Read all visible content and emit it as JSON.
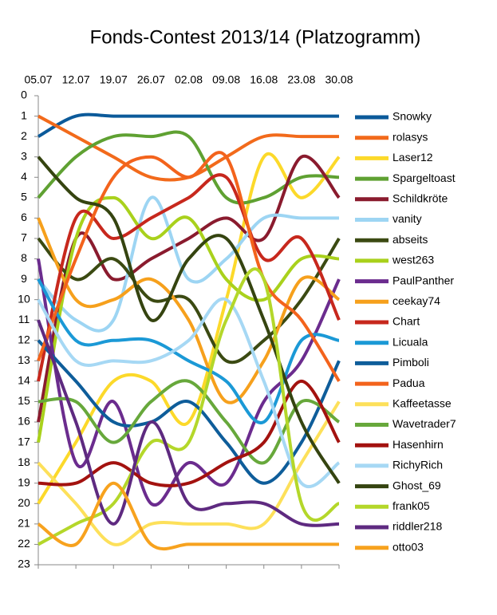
{
  "chart_data": {
    "type": "line",
    "title": "Fonds-Contest 2013/14 (Platzogramm)",
    "categories": [
      "05.07",
      "12.07",
      "19.07",
      "26.07",
      "02.08",
      "09.08",
      "16.08",
      "23.08",
      "30.08"
    ],
    "ylim": [
      0,
      23
    ],
    "y_reversed": true,
    "yticks": [
      0,
      1,
      2,
      3,
      4,
      5,
      6,
      7,
      8,
      9,
      10,
      11,
      12,
      13,
      14,
      15,
      16,
      17,
      18,
      19,
      20,
      21,
      22,
      23
    ],
    "legend": "right",
    "smooth": true,
    "series": [
      {
        "name": "Snowky",
        "color": "#0b5a9a",
        "values": [
          2,
          1,
          1,
          1,
          1,
          1,
          1,
          1,
          1
        ]
      },
      {
        "name": "rolasys",
        "color": "#f26a1b",
        "values": [
          1,
          2,
          3,
          4,
          4,
          3,
          2,
          2,
          2
        ]
      },
      {
        "name": "Laser12",
        "color": "#fcd92a",
        "values": [
          20,
          17,
          14,
          14,
          16,
          10,
          3,
          5,
          3
        ]
      },
      {
        "name": "Spargeltoast",
        "color": "#5fa132",
        "values": [
          5,
          3,
          2,
          2,
          2,
          5,
          5,
          4,
          4
        ]
      },
      {
        "name": "Schildkröte",
        "color": "#8a1b2e",
        "values": [
          16,
          7,
          9,
          8,
          7,
          6,
          7,
          3,
          5
        ]
      },
      {
        "name": "vanity",
        "color": "#9dd5f3",
        "values": [
          9,
          11,
          11,
          5,
          9,
          8,
          6,
          6,
          6
        ]
      },
      {
        "name": "abseits",
        "color": "#3b4a12",
        "values": [
          7,
          9,
          8,
          10,
          10,
          13,
          12,
          10,
          7
        ]
      },
      {
        "name": "west263",
        "color": "#a9d11c",
        "values": [
          17,
          7,
          5,
          7,
          6,
          9,
          10,
          8,
          8
        ]
      },
      {
        "name": "PaulPanther",
        "color": "#6b2c8e",
        "values": [
          8,
          18,
          15,
          20,
          18,
          19,
          15,
          13,
          9
        ]
      },
      {
        "name": "ceekay74",
        "color": "#f6a01c",
        "values": [
          6,
          10,
          10,
          9,
          11,
          15,
          13,
          9,
          10
        ]
      },
      {
        "name": "Chart",
        "color": "#c7281d",
        "values": [
          14,
          6,
          7,
          6,
          5,
          4,
          8,
          7,
          11
        ]
      },
      {
        "name": "Licuala",
        "color": "#1b99d6",
        "values": [
          9,
          12,
          12,
          12,
          13,
          14,
          16,
          12,
          12
        ]
      },
      {
        "name": "Pimboli",
        "color": "#0e5d9a",
        "values": [
          12,
          14,
          16,
          16,
          15,
          17,
          19,
          17,
          13
        ]
      },
      {
        "name": "Padua",
        "color": "#f3631c",
        "values": [
          13,
          8,
          4,
          3,
          4,
          3,
          9,
          11,
          14
        ]
      },
      {
        "name": "Kaffeetasse",
        "color": "#fde05a",
        "values": [
          18,
          20,
          22,
          21,
          21,
          21,
          21,
          18,
          15
        ]
      },
      {
        "name": "Wavetrader7",
        "color": "#67a83b",
        "values": [
          15,
          15,
          17,
          15,
          14,
          16,
          18,
          15,
          16
        ]
      },
      {
        "name": "Hasenhirn",
        "color": "#a3120f",
        "values": [
          19,
          19,
          18,
          19,
          19,
          18,
          17,
          14,
          17
        ]
      },
      {
        "name": "RichyRich",
        "color": "#a6d8f4",
        "values": [
          10,
          13,
          13,
          13,
          12,
          10,
          14,
          19,
          18
        ]
      },
      {
        "name": "Ghost_69",
        "color": "#354410",
        "values": [
          3,
          5,
          6,
          11,
          8,
          7,
          11,
          16,
          19
        ]
      },
      {
        "name": "frank05",
        "color": "#b4d72a",
        "values": [
          22,
          21,
          20,
          17,
          17,
          11,
          9,
          20,
          20
        ]
      },
      {
        "name": "riddler218",
        "color": "#5e2a80",
        "values": [
          11,
          16,
          21,
          16,
          20,
          20,
          20,
          21,
          21
        ]
      },
      {
        "name": "otto03",
        "color": "#f7a21e",
        "values": [
          21,
          22,
          19,
          22,
          22,
          22,
          22,
          22,
          22
        ]
      }
    ]
  }
}
